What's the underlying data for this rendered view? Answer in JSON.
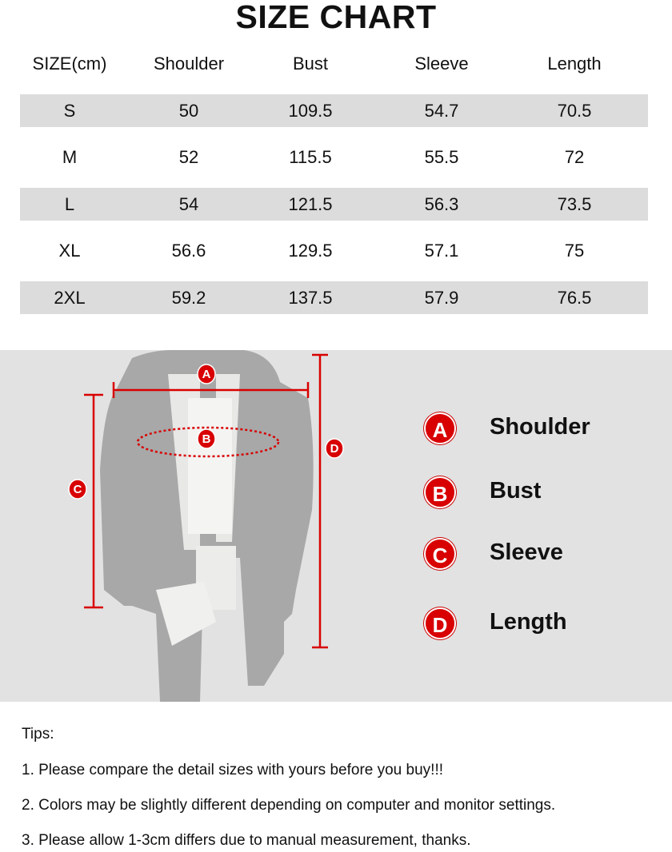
{
  "title": "SIZE CHART",
  "table": {
    "headers": [
      "SIZE(cm)",
      "Shoulder",
      "Bust",
      "Sleeve",
      "Length"
    ],
    "rows": [
      [
        "S",
        "50",
        "109.5",
        "54.7",
        "70.5"
      ],
      [
        "M",
        "52",
        "115.5",
        "55.5",
        "72"
      ],
      [
        "L",
        "54",
        "121.5",
        "56.3",
        "73.5"
      ],
      [
        "XL",
        "56.6",
        "129.5",
        "57.1",
        "75"
      ],
      [
        "2XL",
        "59.2",
        "137.5",
        "57.9",
        "76.5"
      ]
    ]
  },
  "diagram": {
    "markers": [
      "A",
      "B",
      "C",
      "D"
    ],
    "legend": [
      {
        "badge": "A",
        "label": "Shoulder"
      },
      {
        "badge": "B",
        "label": "Bust"
      },
      {
        "badge": "C",
        "label": "Sleeve"
      },
      {
        "badge": "D",
        "label": "Length"
      }
    ],
    "accent_color": "#d80000"
  },
  "tips": {
    "heading": "Tips:",
    "items": [
      "1. Please compare the detail sizes with yours before you buy!!!",
      "2. Colors may be slightly different depending on computer and monitor settings.",
      "3. Please allow 1-3cm differs due to manual measurement, thanks."
    ]
  }
}
